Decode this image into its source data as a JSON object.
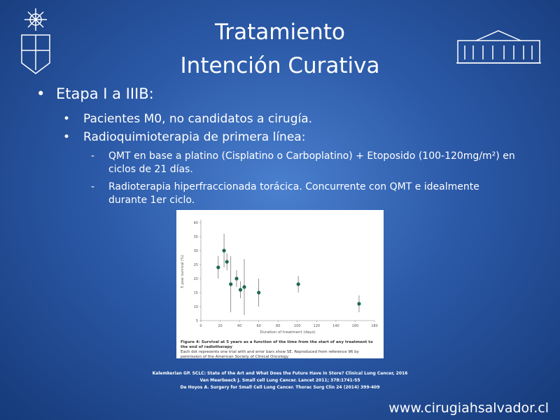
{
  "slide": {
    "title": [
      "Tratamiento",
      "Intención Curativa"
    ],
    "bullet": "Etapa I a IIIB:",
    "sub_bullets": [
      "Pacientes M0, no candidatos a cirugía.",
      "Radioquimioterapia de primera línea:"
    ],
    "items": [
      "QMT en base a platino (Cisplatino o Carboplatino) + Etoposido (100-120mg/m²) en ciclos de 21 días.",
      "Radioterapia hiperfraccionada torácica. Concurrente con QMT e idealmente durante 1er ciclo."
    ],
    "references": [
      "Kalemkerian GP. SCLC: State of the Art and What Does the Future Have in Store? Clinical Lung Cancer, 2016",
      "Van Meerbeeck J. Small cell Lung Cancer. Lancet 2011; 378:1741-55",
      "De Hoyos A. Surgery for Small Cell Lung Cancer. Thorac Surg Clin 24 (2014) 399-409"
    ],
    "website": "www.cirugiahsalvador.cl"
  },
  "chart_data": {
    "type": "scatter",
    "caption_title": "Figure 4: Survival at 5 years as a function of the time from the start of any treatment to the end of radiotherapy",
    "caption_body": "Each dot represents one trial with and error bars show SE. Reproduced from reference 96 by permission of the American Society of Clinical Oncology.",
    "x_label": "Duration of treatment (days)",
    "y_label": "5 year survival (%)",
    "x": [
      18,
      24,
      27,
      31,
      37,
      41,
      45,
      60,
      101,
      164
    ],
    "values": [
      24,
      30,
      26,
      18,
      20,
      16,
      17,
      15,
      18,
      11
    ],
    "errors": [
      4,
      6,
      3,
      10,
      3,
      3,
      10,
      5,
      3,
      3
    ],
    "color": "#1e6b4a",
    "xlim": [
      0,
      180
    ],
    "xticks": [
      0,
      20,
      40,
      60,
      80,
      100,
      120,
      140,
      160,
      180
    ],
    "ylim": [
      5,
      40
    ],
    "yticks": [
      5,
      10,
      15,
      20,
      25,
      30,
      35,
      40
    ]
  }
}
